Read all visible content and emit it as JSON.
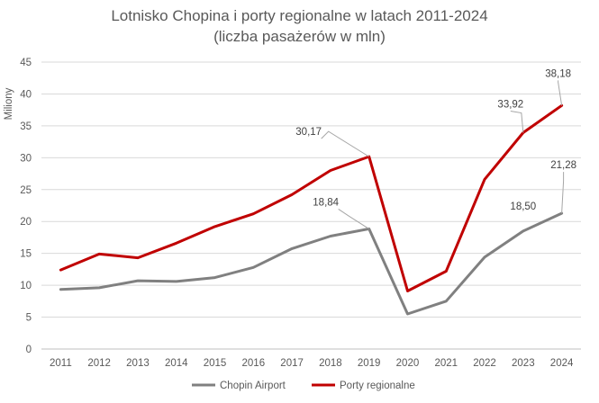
{
  "chart_data": {
    "type": "line",
    "title": "Lotnisko Chopina i porty regionalne w latach 2011-2024",
    "subtitle": "(liczba pasażerów w mln)",
    "ylabel": "Miliony",
    "xlabel": "",
    "ylim": [
      0,
      45
    ],
    "yticks": [
      "0",
      "5",
      "10",
      "15",
      "20",
      "25",
      "30",
      "35",
      "40",
      "45"
    ],
    "categories": [
      "2011",
      "2012",
      "2013",
      "2014",
      "2015",
      "2016",
      "2017",
      "2018",
      "2019",
      "2020",
      "2021",
      "2022",
      "2023",
      "2024"
    ],
    "grid": true,
    "legend": "bottom",
    "series": [
      {
        "name": "Chopin Airport",
        "color": "#808080",
        "values": [
          9.35,
          9.6,
          10.7,
          10.6,
          11.2,
          12.8,
          15.75,
          17.7,
          18.84,
          5.5,
          7.5,
          14.4,
          18.5,
          21.28
        ],
        "labels": {
          "8": "18,84",
          "12": "18,50",
          "13": "21,28"
        }
      },
      {
        "name": "Porty regionalne",
        "color": "#C00000",
        "values": [
          12.4,
          14.9,
          14.3,
          16.6,
          19.2,
          21.2,
          24.2,
          28.0,
          30.17,
          9.1,
          12.2,
          26.6,
          33.92,
          38.18
        ],
        "labels": {
          "8": "30,17",
          "12": "33,92",
          "13": "38,18"
        }
      }
    ]
  }
}
